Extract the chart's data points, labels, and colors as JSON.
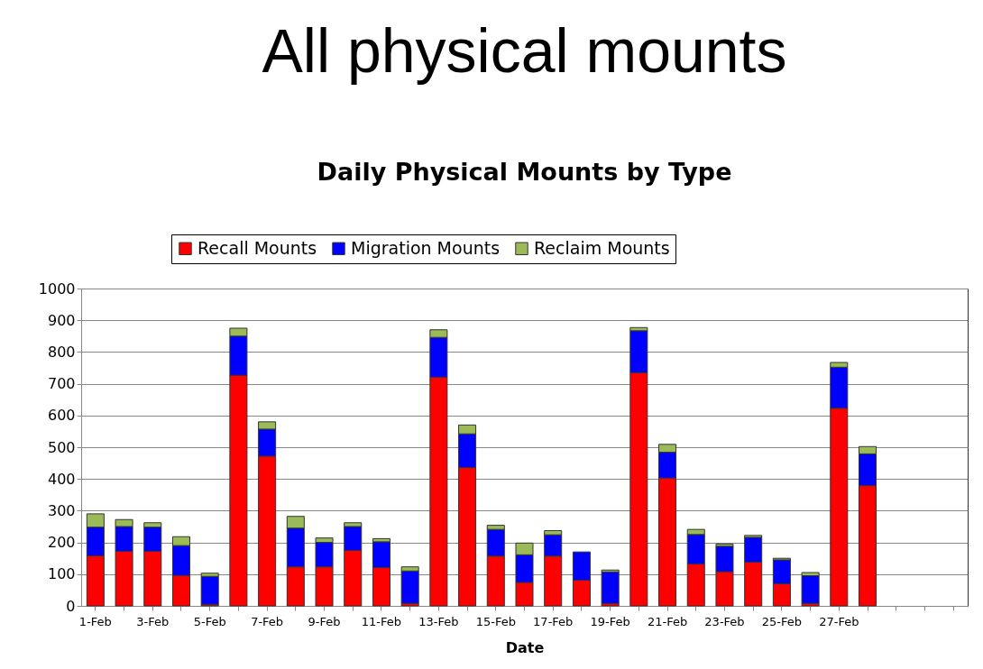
{
  "chart_data": {
    "type": "bar",
    "stacked": true,
    "title": "All physical mounts",
    "subtitle": "Daily Physical Mounts by Type",
    "xlabel": "Date",
    "categories": [
      "1-Feb",
      null,
      "3-Feb",
      null,
      "5-Feb",
      null,
      "7-Feb",
      null,
      "9-Feb",
      null,
      "11-Feb",
      null,
      "13-Feb",
      null,
      "15-Feb",
      null,
      "17-Feb",
      null,
      "19-Feb",
      null,
      "21-Feb",
      null,
      "23-Feb",
      null,
      "25-Feb",
      null,
      "27-Feb",
      null,
      null,
      null,
      null
    ],
    "series": [
      {
        "name": "Recall Mounts",
        "color": "#ff0000",
        "values": [
          158,
          172,
          172,
          96,
          5,
          727,
          472,
          123,
          123,
          175,
          121,
          8,
          721,
          436,
          157,
          74,
          157,
          81,
          8,
          735,
          403,
          132,
          108,
          138,
          70,
          8,
          623,
          379,
          null,
          null,
          null
        ]
      },
      {
        "name": "Migration Mounts",
        "color": "#0000ff",
        "values": [
          90,
          78,
          76,
          94,
          88,
          123,
          85,
          122,
          77,
          75,
          81,
          102,
          125,
          106,
          84,
          87,
          67,
          89,
          99,
          132,
          81,
          93,
          80,
          78,
          75,
          87,
          129,
          100,
          null,
          null,
          null
        ]
      },
      {
        "name": "Reclaim Mounts",
        "color": "#9bbb59",
        "values": [
          42,
          22,
          14,
          28,
          10,
          25,
          23,
          37,
          14,
          12,
          10,
          13,
          24,
          28,
          13,
          37,
          13,
          null,
          6,
          10,
          25,
          16,
          7,
          6,
          5,
          10,
          15,
          23,
          null,
          null,
          null
        ]
      }
    ],
    "ylim": [
      0,
      1000
    ],
    "yticks": [
      0,
      100,
      200,
      300,
      400,
      500,
      600,
      700,
      800,
      900,
      1000
    ],
    "grid": "y",
    "legend": "top"
  }
}
